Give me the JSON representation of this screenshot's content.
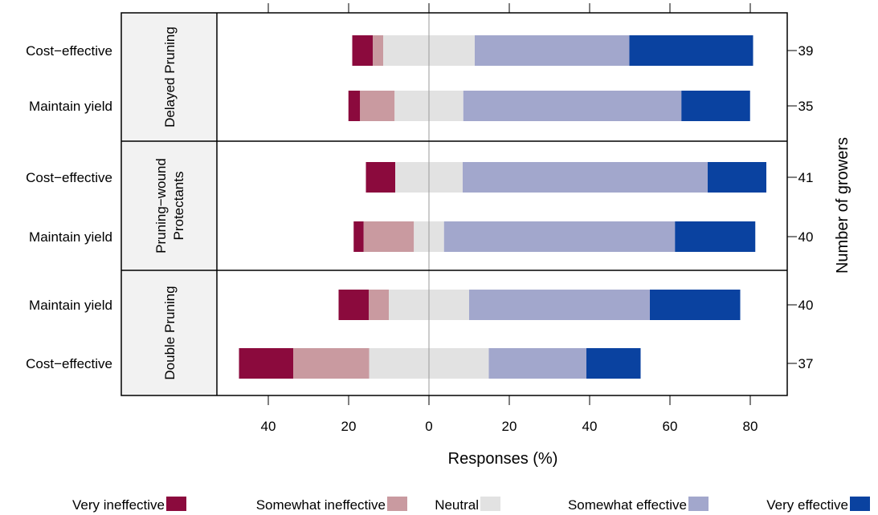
{
  "chart_data": {
    "type": "bar",
    "subtype": "diverging-stacked-bar",
    "xlabel": "Responses (%)",
    "ylabel_right": "Number of growers",
    "xlim": [
      -53,
      89
    ],
    "x_ticks": [
      -40,
      -20,
      0,
      20,
      40,
      60,
      80
    ],
    "x_tick_labels": [
      "40",
      "20",
      "0",
      "20",
      "40",
      "60",
      "80"
    ],
    "center_line": 0,
    "legend_position": "bottom",
    "categories": [
      "Very ineffective",
      "Somewhat ineffective",
      "Neutral",
      "Somewhat effective",
      "Very effective"
    ],
    "colors": [
      "#8B0A3D",
      "#C99AA0",
      "#E2E2E2",
      "#A2A7CC",
      "#0A42A0"
    ],
    "panels": [
      {
        "label_lines": [
          "Delayed Pruning"
        ],
        "bars": [
          {
            "label": "Cost−effective",
            "n": "39",
            "values": [
              5.1,
              2.6,
              22.8,
              38.5,
              30.8
            ]
          },
          {
            "label": "Maintain yield",
            "n": "35",
            "values": [
              2.9,
              8.6,
              17.1,
              54.3,
              17.1
            ]
          }
        ]
      },
      {
        "label_lines": [
          "Pruning−wound",
          "Protectants"
        ],
        "bars": [
          {
            "label": "Cost−effective",
            "n": "41",
            "values": [
              7.3,
              0,
              16.8,
              61.0,
              14.6
            ]
          },
          {
            "label": "Maintain yield",
            "n": "40",
            "values": [
              2.5,
              12.5,
              7.5,
              57.5,
              20.0
            ]
          }
        ]
      },
      {
        "label_lines": [
          "Double Pruning"
        ],
        "bars": [
          {
            "label": "Maintain yield",
            "n": "40",
            "values": [
              7.5,
              5.0,
              20.0,
              45.0,
              22.5
            ]
          },
          {
            "label": "Cost−effective",
            "n": "37",
            "values": [
              13.5,
              18.9,
              29.8,
              24.3,
              13.5
            ]
          }
        ]
      }
    ]
  }
}
